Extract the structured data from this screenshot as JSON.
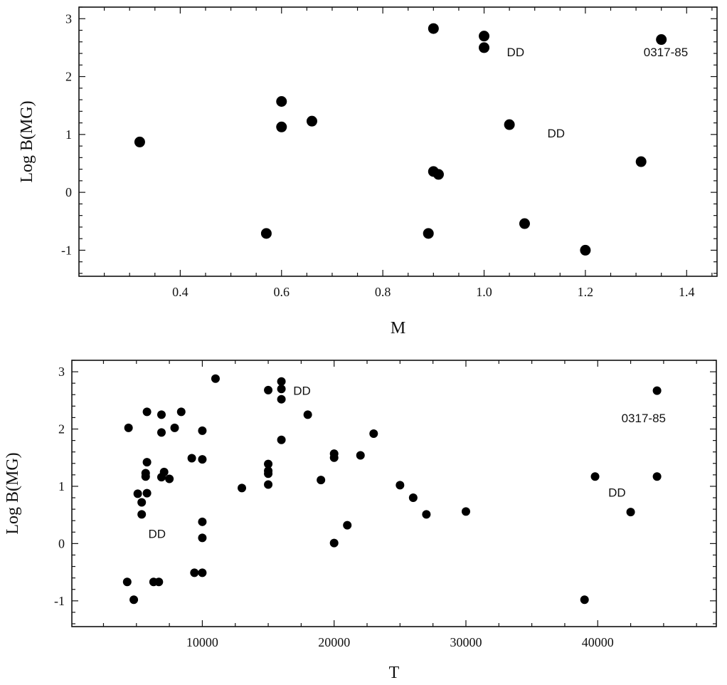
{
  "chart_data": [
    {
      "type": "scatter",
      "xlabel": "M",
      "ylabel": "Log B(MG)",
      "xlim": [
        0.2,
        1.46
      ],
      "ylim": [
        -1.45,
        3.2
      ],
      "xticks": [
        0.4,
        0.6,
        0.8,
        1.0,
        1.2,
        1.4
      ],
      "xtick_labels": [
        "0.4",
        "0.6",
        "0.8",
        "1.0",
        "1.2",
        "1.4"
      ],
      "yticks": [
        -1,
        0,
        1,
        2,
        3
      ],
      "ytick_labels": [
        "-1",
        "0",
        "1",
        "2",
        "3"
      ],
      "grid": false,
      "points": [
        {
          "x": 0.32,
          "y": 0.87
        },
        {
          "x": 0.57,
          "y": -0.71
        },
        {
          "x": 0.6,
          "y": 1.57
        },
        {
          "x": 0.6,
          "y": 1.13
        },
        {
          "x": 0.66,
          "y": 1.23
        },
        {
          "x": 0.89,
          "y": -0.71
        },
        {
          "x": 0.9,
          "y": 2.83
        },
        {
          "x": 0.9,
          "y": 0.36
        },
        {
          "x": 0.91,
          "y": 0.31
        },
        {
          "x": 1.0,
          "y": 2.7
        },
        {
          "x": 1.0,
          "y": 2.5
        },
        {
          "x": 1.05,
          "y": 1.17
        },
        {
          "x": 1.08,
          "y": -0.54
        },
        {
          "x": 1.2,
          "y": -1.0
        },
        {
          "x": 1.31,
          "y": 0.53
        },
        {
          "x": 1.35,
          "y": 2.64
        }
      ],
      "annotations": [
        {
          "text": "DD",
          "x": 1.045,
          "y": 2.35
        },
        {
          "text": "DD",
          "x": 1.125,
          "y": 0.95
        },
        {
          "text": "0317-85",
          "x": 1.315,
          "y": 2.35
        }
      ]
    },
    {
      "type": "scatter",
      "xlabel": "T",
      "ylabel": "Log B(MG)",
      "xlim": [
        100,
        49000
      ],
      "ylim": [
        -1.45,
        3.2
      ],
      "xticks": [
        10000,
        20000,
        30000,
        40000
      ],
      "xtick_labels": [
        "10000",
        "20000",
        "30000",
        "40000"
      ],
      "yticks": [
        -1,
        0,
        1,
        2,
        3
      ],
      "ytick_labels": [
        "-1",
        "0",
        "1",
        "2",
        "3"
      ],
      "grid": false,
      "points": [
        {
          "x": 4300,
          "y": -0.67
        },
        {
          "x": 4400,
          "y": 2.02
        },
        {
          "x": 4800,
          "y": -0.98
        },
        {
          "x": 5100,
          "y": 0.87
        },
        {
          "x": 5400,
          "y": 0.72
        },
        {
          "x": 5400,
          "y": 0.51
        },
        {
          "x": 5700,
          "y": 1.23
        },
        {
          "x": 5700,
          "y": 1.17
        },
        {
          "x": 5800,
          "y": 0.88
        },
        {
          "x": 5800,
          "y": 1.42
        },
        {
          "x": 5800,
          "y": 2.3
        },
        {
          "x": 6300,
          "y": -0.67
        },
        {
          "x": 6700,
          "y": -0.67
        },
        {
          "x": 6900,
          "y": 2.25
        },
        {
          "x": 6900,
          "y": 1.94
        },
        {
          "x": 6900,
          "y": 1.16
        },
        {
          "x": 7100,
          "y": 1.25
        },
        {
          "x": 7500,
          "y": 1.13
        },
        {
          "x": 7900,
          "y": 2.02
        },
        {
          "x": 8400,
          "y": 2.3
        },
        {
          "x": 9200,
          "y": 1.49
        },
        {
          "x": 9400,
          "y": -0.51
        },
        {
          "x": 10000,
          "y": 1.97
        },
        {
          "x": 10000,
          "y": 1.47
        },
        {
          "x": 10000,
          "y": 0.38
        },
        {
          "x": 10000,
          "y": 0.1
        },
        {
          "x": 10000,
          "y": -0.51
        },
        {
          "x": 11000,
          "y": 2.88
        },
        {
          "x": 13000,
          "y": 0.97
        },
        {
          "x": 15000,
          "y": 2.68
        },
        {
          "x": 15000,
          "y": 1.39
        },
        {
          "x": 15000,
          "y": 1.27
        },
        {
          "x": 15000,
          "y": 1.22
        },
        {
          "x": 15000,
          "y": 1.03
        },
        {
          "x": 16000,
          "y": 2.83
        },
        {
          "x": 16000,
          "y": 2.7
        },
        {
          "x": 16000,
          "y": 2.52
        },
        {
          "x": 16000,
          "y": 1.81
        },
        {
          "x": 18000,
          "y": 2.25
        },
        {
          "x": 19000,
          "y": 1.11
        },
        {
          "x": 20000,
          "y": 1.57
        },
        {
          "x": 20000,
          "y": 1.5
        },
        {
          "x": 20000,
          "y": 0.01
        },
        {
          "x": 21000,
          "y": 0.32
        },
        {
          "x": 22000,
          "y": 1.54
        },
        {
          "x": 23000,
          "y": 1.92
        },
        {
          "x": 25000,
          "y": 1.02
        },
        {
          "x": 26000,
          "y": 0.8
        },
        {
          "x": 27000,
          "y": 0.51
        },
        {
          "x": 30000,
          "y": 0.56
        },
        {
          "x": 39000,
          "y": -0.98
        },
        {
          "x": 39800,
          "y": 1.17
        },
        {
          "x": 42500,
          "y": 0.55
        },
        {
          "x": 44500,
          "y": 2.67
        },
        {
          "x": 44500,
          "y": 1.17
        }
      ],
      "annotations": [
        {
          "text": "DD",
          "x": 16900,
          "y": 2.6
        },
        {
          "text": "DD",
          "x": 5900,
          "y": 0.1
        },
        {
          "text": "DD",
          "x": 40800,
          "y": 0.82
        },
        {
          "text": "0317-85",
          "x": 41800,
          "y": 2.12
        }
      ]
    }
  ]
}
